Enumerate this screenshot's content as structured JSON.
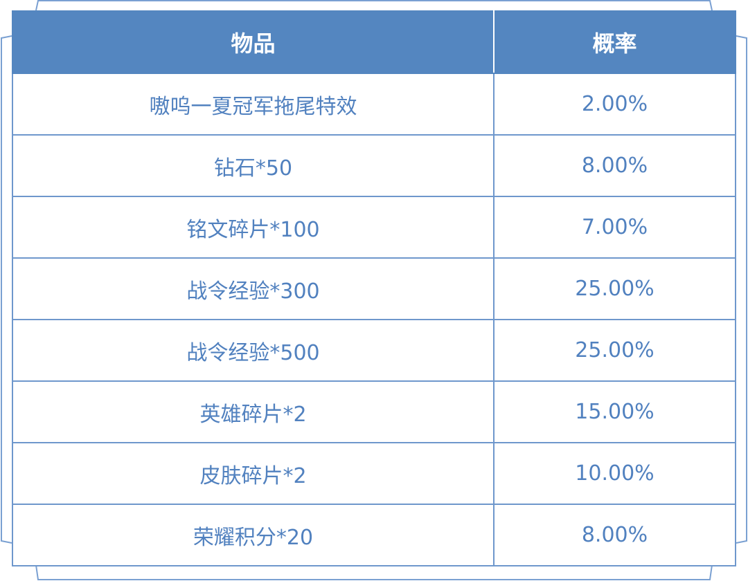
{
  "colors": {
    "header_bg": "#5486c0",
    "text": "#5181bf",
    "border": "#6e97cc"
  },
  "table": {
    "headers": [
      "物品",
      "概率"
    ],
    "rows": [
      {
        "item": "嗷呜一夏冠军拖尾特效",
        "prob": "2.00%"
      },
      {
        "item": "钻石*50",
        "prob": "8.00%"
      },
      {
        "item": "铭文碎片*100",
        "prob": "7.00%"
      },
      {
        "item": "战令经验*300",
        "prob": "25.00%"
      },
      {
        "item": "战令经验*500",
        "prob": "25.00%"
      },
      {
        "item": "英雄碎片*2",
        "prob": "15.00%"
      },
      {
        "item": "皮肤碎片*2",
        "prob": "10.00%"
      },
      {
        "item": "荣耀积分*20",
        "prob": "8.00%"
      }
    ]
  }
}
